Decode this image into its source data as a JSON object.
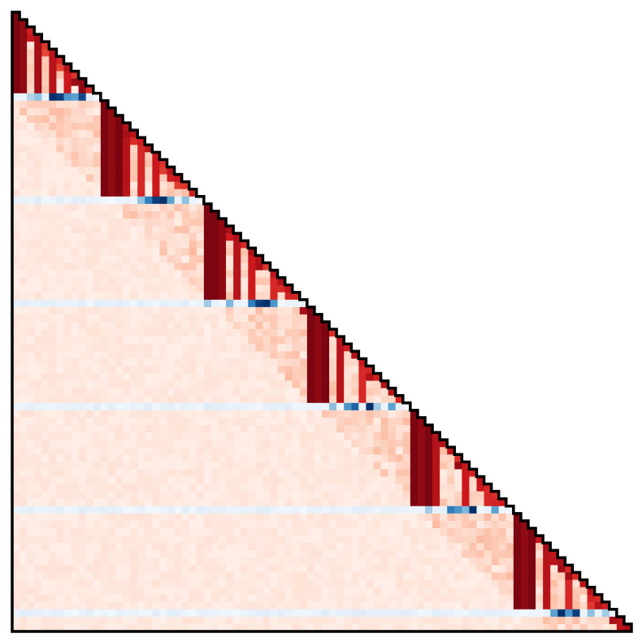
{
  "chart_data": {
    "type": "heatmap",
    "shape": "lower-triangular",
    "n": 84,
    "title": "",
    "xlabel": "",
    "ylabel": "",
    "colormaps": {
      "red_rows": [
        "#fff5f0",
        "#fcbba1",
        "#fb6a4a",
        "#cb181d",
        "#67000d"
      ],
      "blue_rows": [
        "#f7fbff",
        "#c6dbef",
        "#6baed6",
        "#2171b5",
        "#08306b"
      ]
    },
    "value_range": [
      0,
      1
    ],
    "blue_rows_zero_based": [
      11,
      25,
      39,
      53,
      67,
      81
    ],
    "blocks": [
      {
        "rows": [
          0,
          10
        ],
        "peaks": [
          [
            0,
            0.95
          ],
          [
            1,
            0.9
          ],
          [
            3,
            0.85
          ],
          [
            5,
            0.8
          ],
          [
            7,
            0.75
          ],
          [
            9,
            0.9
          ]
        ]
      },
      {
        "rows": [
          11,
          11
        ],
        "peaks": [
          [
            5,
            1.0
          ],
          [
            6,
            0.95
          ],
          [
            9,
            0.9
          ],
          [
            7,
            0.6
          ],
          [
            8,
            0.55
          ],
          [
            3,
            0.4
          ],
          [
            2,
            0.3
          ]
        ]
      },
      {
        "rows": [
          12,
          24
        ],
        "peaks": [
          [
            12,
            0.95
          ],
          [
            13,
            0.9
          ],
          [
            14,
            0.95
          ],
          [
            15,
            0.8
          ],
          [
            17,
            0.7
          ],
          [
            19,
            0.75
          ]
        ]
      },
      {
        "rows": [
          25,
          25
        ],
        "peaks": [
          [
            20,
            1.0
          ],
          [
            19,
            0.95
          ],
          [
            18,
            0.7
          ],
          [
            21,
            0.55
          ],
          [
            17,
            0.4
          ],
          [
            23,
            0.4
          ]
        ]
      },
      {
        "rows": [
          26,
          38
        ],
        "peaks": [
          [
            26,
            0.95
          ],
          [
            27,
            0.95
          ],
          [
            28,
            0.9
          ],
          [
            30,
            0.8
          ],
          [
            32,
            0.75
          ],
          [
            35,
            0.7
          ]
        ]
      },
      {
        "rows": [
          39,
          39
        ],
        "peaks": [
          [
            34,
            1.0
          ],
          [
            33,
            0.95
          ],
          [
            32,
            0.7
          ],
          [
            35,
            0.6
          ],
          [
            29,
            0.45
          ],
          [
            26,
            0.35
          ]
        ]
      },
      {
        "rows": [
          40,
          52
        ],
        "peaks": [
          [
            40,
            0.95
          ],
          [
            41,
            0.9
          ],
          [
            42,
            0.95
          ],
          [
            44,
            0.8
          ],
          [
            47,
            0.7
          ]
        ]
      },
      {
        "rows": [
          53,
          53
        ],
        "peaks": [
          [
            48,
            1.0
          ],
          [
            46,
            0.8
          ],
          [
            45,
            0.6
          ],
          [
            51,
            0.55
          ],
          [
            43,
            0.4
          ],
          [
            49,
            0.35
          ]
        ]
      },
      {
        "rows": [
          54,
          66
        ],
        "peaks": [
          [
            54,
            0.95
          ],
          [
            55,
            0.9
          ],
          [
            56,
            0.95
          ],
          [
            57,
            0.8
          ],
          [
            61,
            0.75
          ],
          [
            64,
            0.7
          ]
        ]
      },
      {
        "rows": [
          67,
          67
        ],
        "peaks": [
          [
            62,
            1.0
          ],
          [
            59,
            0.7
          ],
          [
            60,
            0.6
          ],
          [
            65,
            0.55
          ],
          [
            61,
            0.45
          ],
          [
            56,
            0.35
          ]
        ]
      },
      {
        "rows": [
          68,
          80
        ],
        "peaks": [
          [
            68,
            0.95
          ],
          [
            69,
            0.9
          ],
          [
            70,
            0.95
          ],
          [
            72,
            0.8
          ],
          [
            75,
            0.7
          ],
          [
            78,
            0.65
          ]
        ]
      },
      {
        "rows": [
          81,
          81
        ],
        "peaks": [
          [
            76,
            0.95
          ],
          [
            74,
            1.0
          ],
          [
            75,
            0.6
          ],
          [
            73,
            0.55
          ],
          [
            78,
            0.4
          ],
          [
            80,
            0.35
          ]
        ]
      },
      {
        "rows": [
          82,
          83
        ],
        "peaks": [
          [
            82,
            0.8
          ],
          [
            83,
            0.7
          ]
        ]
      }
    ],
    "background_level": 0.06,
    "diagonal_level": 0.85,
    "outline": {
      "color": "#000000",
      "border": "staircase"
    }
  }
}
